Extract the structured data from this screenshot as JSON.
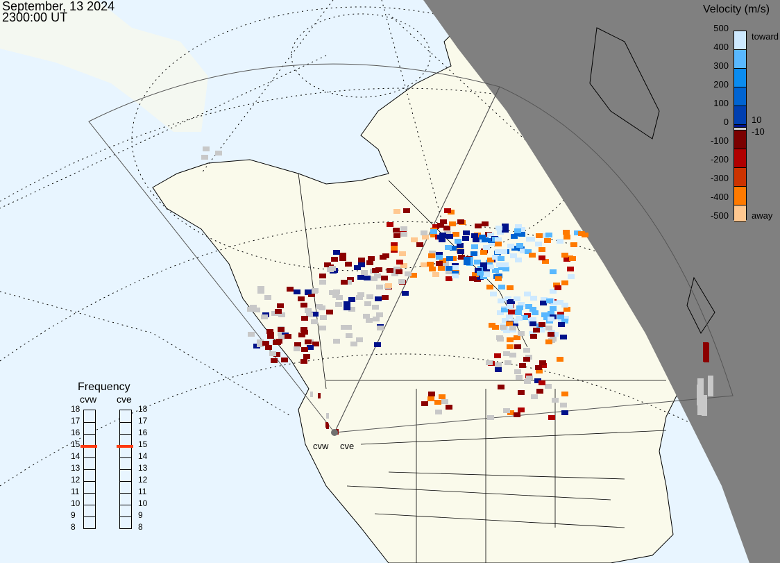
{
  "header": {
    "date": "September, 13 2024",
    "time": "2300:00 UT"
  },
  "velocity_legend": {
    "title": "Velocity (m/s)",
    "ticks": [
      "500",
      "400",
      "300",
      "200",
      "100",
      "0",
      "-100",
      "-200",
      "-300",
      "-400",
      "-500"
    ],
    "toward_label": "toward",
    "away_label": "away",
    "inner_pos": "10",
    "inner_neg": "-10",
    "colors": [
      "#cde9ff",
      "#59b8ff",
      "#0a8cf0",
      "#0064d2",
      "#003fb0",
      "#00128a",
      "#d0d0d0",
      "#7a0000",
      "#b00000",
      "#cc3300",
      "#ff7a00",
      "#ffc890"
    ]
  },
  "frequency": {
    "title": "Frequency",
    "unit_range": [
      "8",
      "9",
      "10",
      "11",
      "12",
      "13",
      "14",
      "15",
      "16",
      "17",
      "18"
    ],
    "radars": [
      {
        "name": "cvw",
        "value_mhz": 14.9
      },
      {
        "name": "cve",
        "value_mhz": 14.9
      }
    ],
    "marker_color": "#ff3a10"
  },
  "map": {
    "ocean_color": "#e8f5ff",
    "land_color": "#fafaeb",
    "night_color": "#808080",
    "ground_scatter_color": "#c8c8c8",
    "radar_labels": [
      "cvw",
      "cve"
    ]
  }
}
